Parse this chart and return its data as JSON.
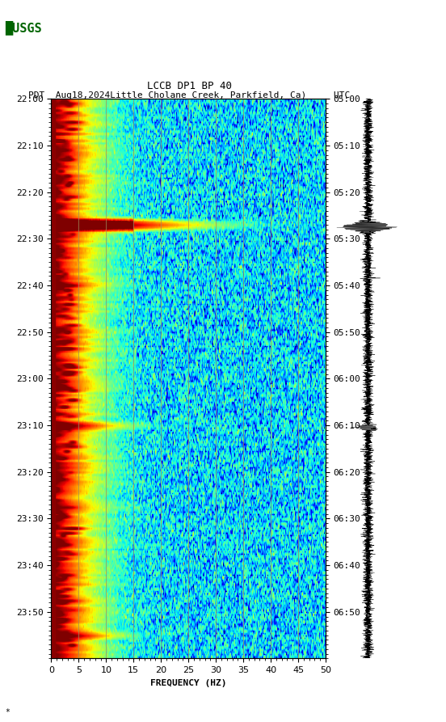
{
  "title_line1": "LCCB DP1 BP 40",
  "title_line2": "PDT  Aug18,2024Little Cholane Creek, Parkfield, Ca)     UTC",
  "xlabel": "FREQUENCY (HZ)",
  "left_times": [
    "22:00",
    "22:10",
    "22:20",
    "22:30",
    "22:40",
    "22:50",
    "23:00",
    "23:10",
    "23:20",
    "23:30",
    "23:40",
    "23:50"
  ],
  "right_times": [
    "05:00",
    "05:10",
    "05:20",
    "05:30",
    "05:40",
    "05:50",
    "06:00",
    "06:10",
    "06:20",
    "06:30",
    "06:40",
    "06:50"
  ],
  "freq_min": 0,
  "freq_max": 50,
  "grid_freqs": [
    5,
    10,
    15,
    20,
    25,
    30,
    35,
    40,
    45
  ],
  "dark_red_col": "#8B0000",
  "bg_color": "#ffffff",
  "fig_width": 5.52,
  "fig_height": 8.93,
  "dpi": 100
}
